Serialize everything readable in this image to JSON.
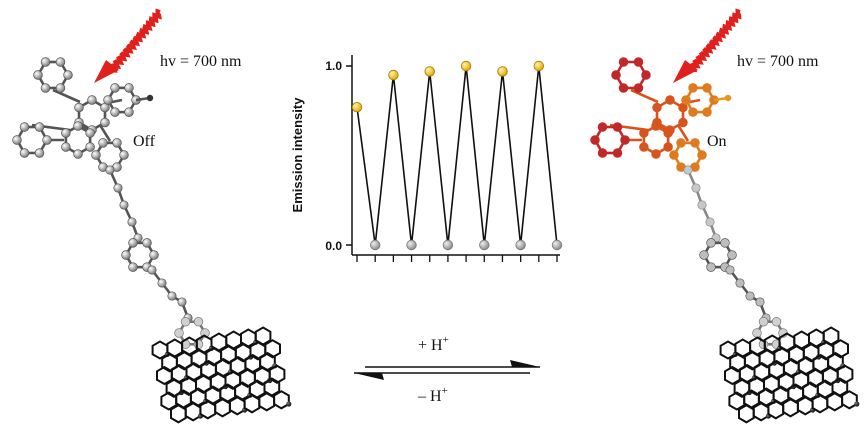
{
  "left_molecule": {
    "light_label": "hv = 700 nm",
    "state_label": "Off",
    "atom_color": "#9a9a9a",
    "bond_color": "#555555"
  },
  "right_molecule": {
    "light_label": "hv = 700 nm",
    "state_label": "On",
    "ring_colors": [
      "#c0282a",
      "#d9531e",
      "#e07a1f",
      "#e8961f"
    ]
  },
  "equilibrium": {
    "forward_label": "+ H",
    "forward_sup": "+",
    "reverse_label": "– H",
    "reverse_sup": "+"
  },
  "colors": {
    "light_arrow": "#e0201c",
    "nanotube": "#111111",
    "high_point": "#f5c400",
    "low_point": "#b5b5b5"
  },
  "chart_data": {
    "type": "line",
    "ylabel": "Emission intensity",
    "ytick_labels": [
      "0.0",
      "1.0"
    ],
    "ylim": [
      0,
      1.1
    ],
    "cycles": 12,
    "x": [
      0,
      1,
      2,
      3,
      4,
      5,
      6,
      7,
      8,
      9,
      10,
      11
    ],
    "values": [
      0.77,
      0.0,
      0.95,
      0.0,
      0.97,
      0.0,
      1.0,
      0.0,
      0.97,
      0.0,
      1.0,
      0.0
    ],
    "point_states": [
      "on",
      "off",
      "on",
      "off",
      "on",
      "off",
      "on",
      "off",
      "on",
      "off",
      "on",
      "off"
    ]
  }
}
